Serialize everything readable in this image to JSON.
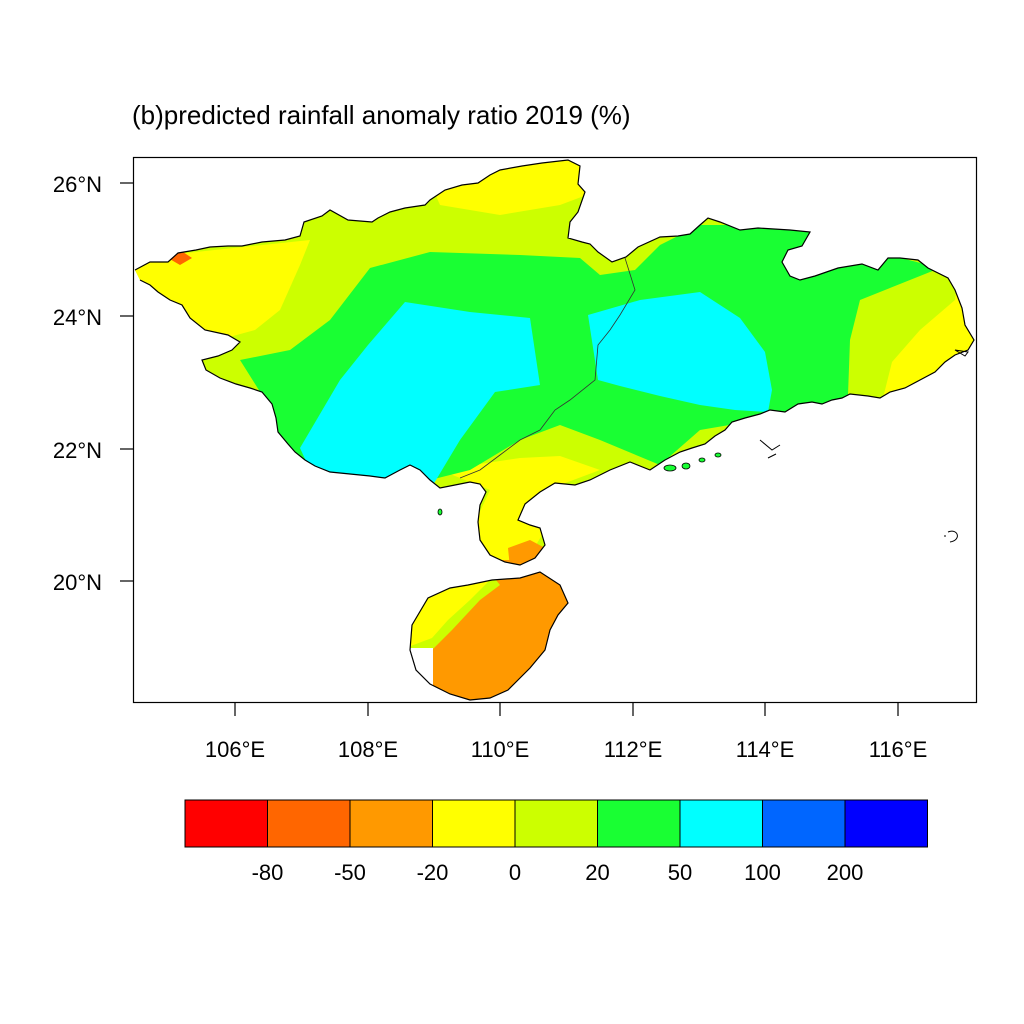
{
  "title": "(b)predicted rainfall anomaly ratio 2019 (%)",
  "map": {
    "lat_ticks": [
      {
        "value": 26,
        "label": "26°N"
      },
      {
        "value": 24,
        "label": "24°N"
      },
      {
        "value": 22,
        "label": "22°N"
      },
      {
        "value": 20,
        "label": "20°N"
      }
    ],
    "lon_ticks": [
      {
        "value": 106,
        "label": "106°E"
      },
      {
        "value": 108,
        "label": "108°E"
      },
      {
        "value": 110,
        "label": "110°E"
      },
      {
        "value": 112,
        "label": "112°E"
      },
      {
        "value": 114,
        "label": "114°E"
      },
      {
        "value": 116,
        "label": "116°E"
      }
    ],
    "lon_range": [
      104.5,
      117.2
    ],
    "lat_range": [
      18.2,
      26.4
    ]
  },
  "colorbar": {
    "colors": [
      "#ff0000",
      "#ff6600",
      "#ff9900",
      "#ffff00",
      "#ccff00",
      "#19ff33",
      "#00ffff",
      "#0066ff",
      "#0000ff"
    ],
    "labels": [
      "-80",
      "-50",
      "-20",
      "0",
      "20",
      "50",
      "100",
      "200"
    ]
  },
  "legend_colors": {
    "lt_-80": "#ff0000",
    "-80_-50": "#ff6600",
    "-50_-20": "#ff9900",
    "-20_0": "#ffff00",
    "0_20": "#ccff00",
    "20_50": "#19ff33",
    "50_100": "#00ffff",
    "100_200": "#0066ff",
    "gt_200": "#0000ff"
  }
}
